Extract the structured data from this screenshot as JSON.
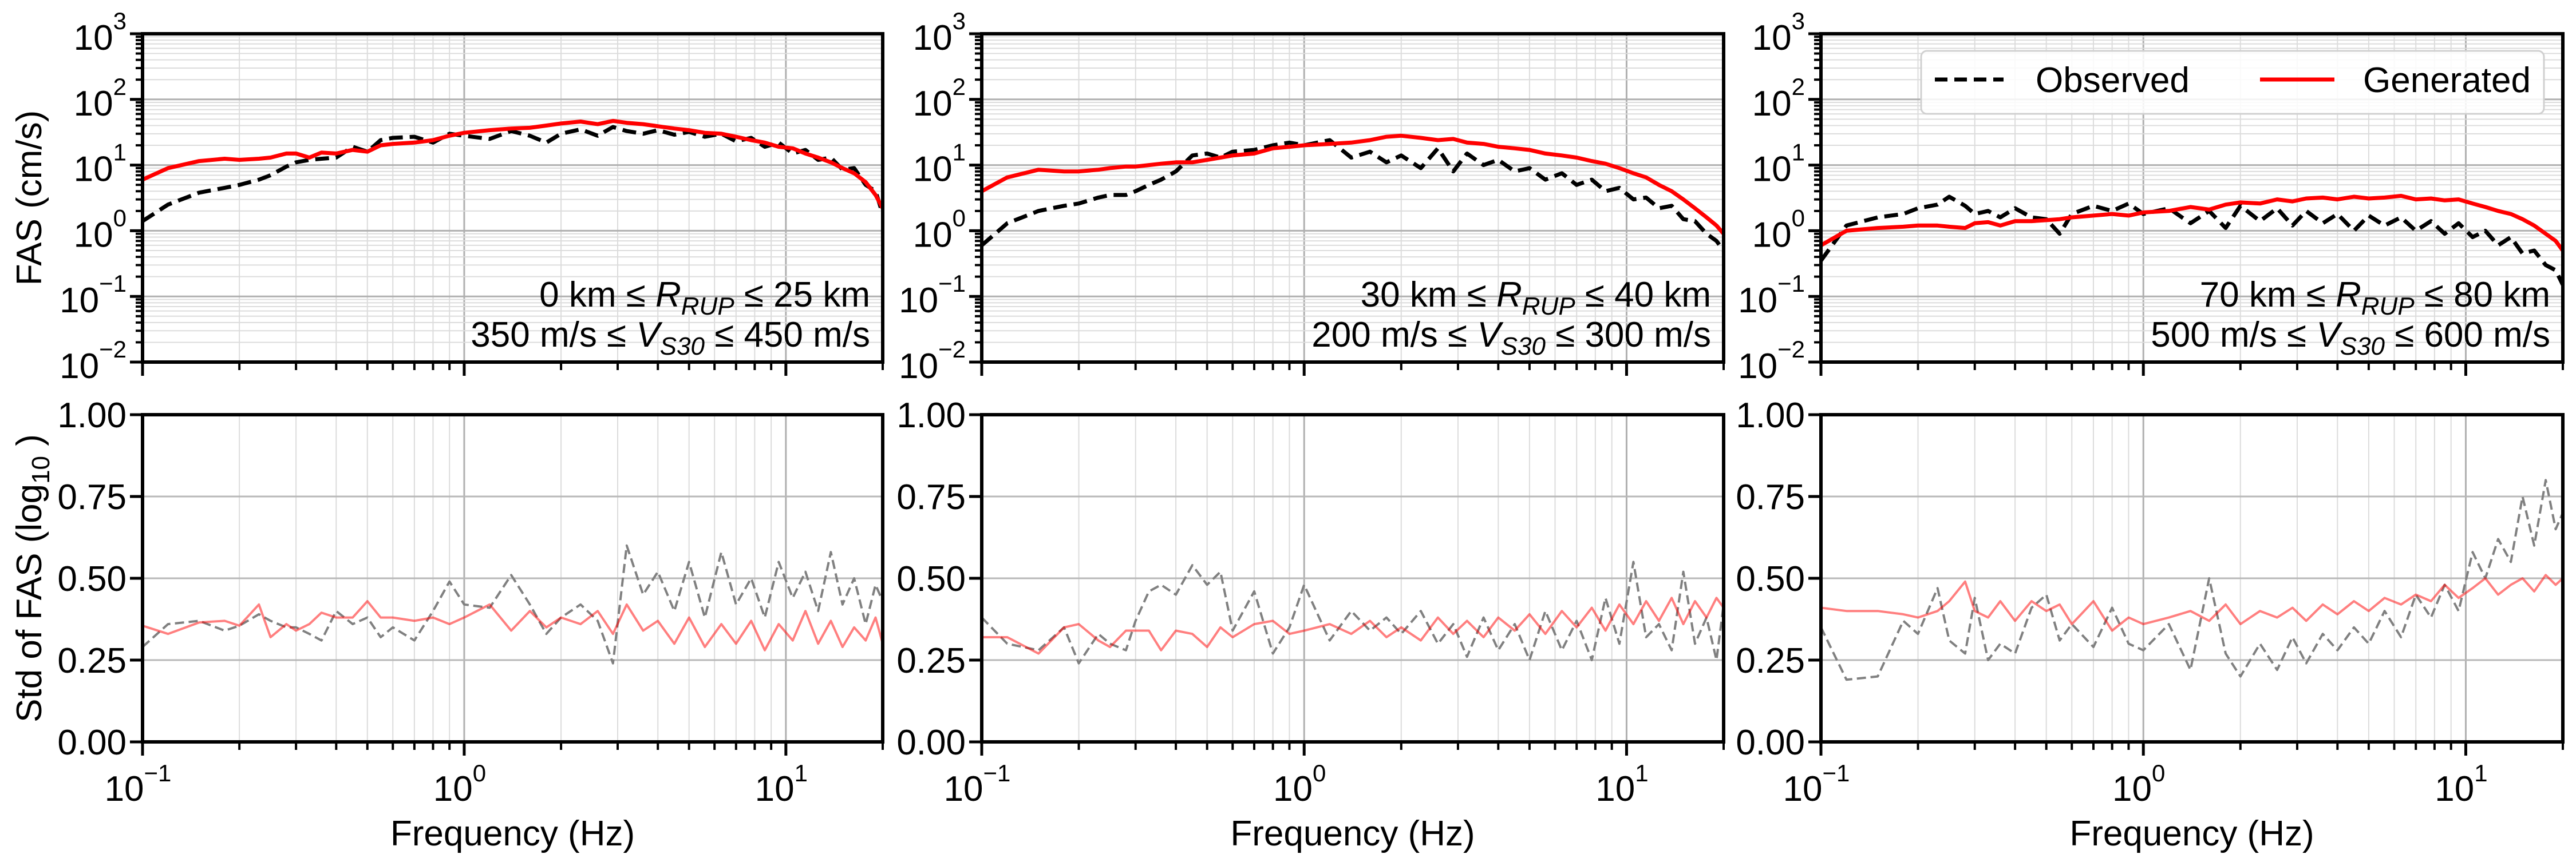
{
  "chart_data": {
    "type": "line",
    "layout": "2 rows x 3 columns",
    "x_scale": "log",
    "xlim": [
      0.1,
      20
    ],
    "xlabel": "Frequency (Hz)",
    "xtick_exponents": [
      -1,
      0,
      1
    ],
    "tick_base": "10",
    "top_row": {
      "ylabel": "FAS (cm/s)",
      "y_scale": "log",
      "ylim": [
        0.01,
        1000
      ],
      "ytick_exponents": [
        -2,
        -1,
        0,
        1,
        2,
        3
      ],
      "grid": "major and minor"
    },
    "bottom_row": {
      "ylabel_main": "Std of FAS (log",
      "ylabel_sub": "10",
      "ylabel_end": " )",
      "y_scale": "linear",
      "ylim": [
        0,
        1
      ],
      "ytick_labels": [
        "0.00",
        "0.25",
        "0.50",
        "0.75",
        "1.00"
      ],
      "ytick_values": [
        0,
        0.25,
        0.5,
        0.75,
        1.0
      ],
      "grid": "major"
    },
    "legend": {
      "placement": "top-right of third top panel",
      "entries": [
        {
          "label": "Observed",
          "color": "#000000",
          "style": "dashed"
        },
        {
          "label": "Generated",
          "color": "#ff0000",
          "style": "solid"
        }
      ]
    },
    "colors": {
      "observed": "#000000",
      "generated": "#ff0000",
      "observed_std": "#808080",
      "generated_std": "#ff0000"
    },
    "frequency": [
      0.1,
      0.12,
      0.15,
      0.18,
      0.2,
      0.23,
      0.25,
      0.28,
      0.3,
      0.33,
      0.36,
      0.4,
      0.45,
      0.5,
      0.55,
      0.6,
      0.7,
      0.8,
      0.9,
      1.0,
      1.2,
      1.4,
      1.6,
      1.8,
      2.0,
      2.3,
      2.6,
      2.9,
      3.2,
      3.6,
      4.0,
      4.5,
      5.0,
      5.6,
      6.3,
      7.0,
      7.8,
      8.6,
      9.5,
      10.5,
      11.5,
      12.6,
      13.8,
      15,
      16.3,
      17.7,
      19,
      20
    ],
    "panels": [
      {
        "annotation": {
          "line1": [
            "0 km ≤ ",
            "R",
            "RUP",
            " ≤ 25 km"
          ],
          "line2": [
            "350 m/s ≤ ",
            "V",
            "S30",
            " ≤ 450 m/s"
          ]
        },
        "fas": [
          {
            "name": "Observed",
            "values": [
              1.4,
              2.5,
              3.8,
              4.5,
              5,
              6,
              7,
              9.5,
              11,
              12,
              12.5,
              13,
              19,
              16,
              24,
              26,
              27,
              22,
              30,
              28,
              25,
              33,
              28,
              22,
              30,
              35,
              28,
              38,
              33,
              30,
              34,
              29,
              32,
              27,
              30,
              23,
              26,
              19,
              22,
              15,
              17,
              12,
              13,
              8.5,
              9,
              5,
              4,
              1.8
            ]
          },
          {
            "name": "Generated",
            "values": [
              6,
              9,
              11.5,
              12.5,
              12,
              12.5,
              13,
              15,
              15,
              13,
              15.5,
              15,
              17,
              16,
              20,
              21,
              22,
              24,
              28,
              31,
              34,
              36,
              37,
              40,
              43,
              46,
              42,
              47,
              44,
              42,
              39,
              36,
              34,
              31,
              30,
              27,
              24,
              22,
              19,
              18,
              15,
              13,
              11,
              9,
              7.5,
              5.5,
              3.5,
              2.2
            ]
          }
        ],
        "std": [
          {
            "name": "Observed",
            "values": [
              0.29,
              0.36,
              0.37,
              0.34,
              0.355,
              0.39,
              0.37,
              0.35,
              0.35,
              0.33,
              0.31,
              0.4,
              0.36,
              0.38,
              0.32,
              0.35,
              0.31,
              0.4,
              0.49,
              0.42,
              0.41,
              0.51,
              0.42,
              0.33,
              0.38,
              0.42,
              0.37,
              0.24,
              0.6,
              0.45,
              0.52,
              0.4,
              0.55,
              0.38,
              0.58,
              0.42,
              0.5,
              0.38,
              0.55,
              0.44,
              0.52,
              0.4,
              0.58,
              0.42,
              0.5,
              0.36,
              0.48,
              0.43
            ]
          },
          {
            "name": "Generated",
            "values": [
              0.355,
              0.33,
              0.365,
              0.37,
              0.355,
              0.42,
              0.32,
              0.36,
              0.34,
              0.36,
              0.395,
              0.38,
              0.38,
              0.43,
              0.38,
              0.38,
              0.37,
              0.38,
              0.36,
              0.38,
              0.42,
              0.34,
              0.4,
              0.35,
              0.38,
              0.36,
              0.4,
              0.33,
              0.42,
              0.34,
              0.37,
              0.3,
              0.38,
              0.29,
              0.36,
              0.3,
              0.37,
              0.28,
              0.36,
              0.31,
              0.4,
              0.3,
              0.37,
              0.29,
              0.35,
              0.31,
              0.38,
              0.3
            ]
          }
        ]
      },
      {
        "annotation": {
          "line1": [
            "30 km ≤ ",
            "R",
            "RUP",
            " ≤ 40 km"
          ],
          "line2": [
            "200 m/s ≤ ",
            "V",
            "S30",
            " ≤ 300 m/s"
          ]
        },
        "fas": [
          {
            "name": "Observed",
            "values": [
              0.6,
              1.3,
              2,
              2.4,
              2.6,
              3.2,
              3.5,
              3.5,
              4,
              5,
              6,
              8,
              14,
              15,
              13,
              16,
              17,
              20,
              22,
              20,
              24,
              13,
              16,
              11,
              14,
              9,
              18,
              8,
              15,
              10,
              12,
              8,
              9,
              6,
              7.5,
              5,
              6,
              4,
              4.5,
              3,
              3.2,
              2.2,
              2.4,
              1.5,
              1.4,
              0.9,
              0.7,
              0.5
            ]
          },
          {
            "name": "Generated",
            "values": [
              4,
              6.5,
              8.5,
              8,
              8,
              8.5,
              9,
              9.5,
              9.5,
              10,
              10.5,
              11,
              11,
              12,
              13,
              14,
              15,
              18,
              19,
              20,
              21,
              22,
              24,
              27,
              28,
              26,
              24,
              25,
              22,
              21,
              19,
              18,
              17,
              15,
              14,
              13,
              11.5,
              10.5,
              9,
              7.5,
              6.5,
              5,
              4,
              3,
              2.2,
              1.6,
              1.2,
              0.9
            ]
          }
        ],
        "std": [
          {
            "name": "Observed",
            "values": [
              0.38,
              0.3,
              0.28,
              0.35,
              0.24,
              0.33,
              0.3,
              0.28,
              0.37,
              0.46,
              0.48,
              0.45,
              0.54,
              0.48,
              0.52,
              0.34,
              0.46,
              0.27,
              0.35,
              0.48,
              0.31,
              0.4,
              0.34,
              0.38,
              0.33,
              0.4,
              0.3,
              0.36,
              0.26,
              0.38,
              0.28,
              0.36,
              0.25,
              0.4,
              0.28,
              0.37,
              0.25,
              0.44,
              0.3,
              0.55,
              0.32,
              0.36,
              0.28,
              0.52,
              0.3,
              0.38,
              0.25,
              0.42
            ]
          },
          {
            "name": "Generated",
            "values": [
              0.32,
              0.32,
              0.27,
              0.35,
              0.36,
              0.31,
              0.29,
              0.34,
              0.34,
              0.34,
              0.28,
              0.34,
              0.33,
              0.29,
              0.35,
              0.32,
              0.36,
              0.37,
              0.33,
              0.34,
              0.36,
              0.33,
              0.37,
              0.32,
              0.35,
              0.31,
              0.38,
              0.33,
              0.37,
              0.32,
              0.38,
              0.34,
              0.39,
              0.33,
              0.4,
              0.35,
              0.41,
              0.34,
              0.42,
              0.36,
              0.43,
              0.37,
              0.44,
              0.36,
              0.43,
              0.38,
              0.44,
              0.41
            ]
          }
        ]
      },
      {
        "annotation": {
          "line1": [
            "70 km ≤ ",
            "R",
            "RUP",
            " ≤ 80 km"
          ],
          "line2": [
            "500 m/s ≤ ",
            "V",
            "S30",
            " ≤ 600 m/s"
          ]
        },
        "fas": [
          {
            "name": "Observed",
            "values": [
              0.35,
              1.2,
              1.6,
              1.8,
              2.2,
              2.5,
              3.3,
              2.4,
              1.8,
              2.0,
              1.6,
              2.2,
              1.6,
              1.5,
              0.9,
              1.8,
              2.4,
              2.0,
              2.6,
              1.8,
              2.2,
              1.3,
              2.0,
              1.1,
              2.4,
              1.4,
              2.2,
              1.2,
              2.0,
              1.3,
              1.8,
              1.0,
              1.7,
              1.2,
              1.6,
              1.0,
              1.4,
              0.9,
              1.3,
              0.8,
              1.0,
              0.6,
              0.8,
              0.45,
              0.5,
              0.3,
              0.25,
              0.15
            ]
          },
          {
            "name": "Generated",
            "values": [
              0.6,
              1.0,
              1.1,
              1.15,
              1.2,
              1.2,
              1.15,
              1.1,
              1.3,
              1.35,
              1.2,
              1.4,
              1.4,
              1.45,
              1.5,
              1.6,
              1.7,
              1.8,
              1.7,
              1.9,
              2.0,
              2.3,
              2.1,
              2.5,
              2.7,
              2.6,
              3.0,
              2.8,
              3.1,
              3.2,
              3.0,
              3.3,
              3.1,
              3.2,
              3.4,
              3.0,
              3.1,
              2.9,
              3.0,
              2.6,
              2.3,
              2.0,
              1.8,
              1.5,
              1.2,
              0.9,
              0.7,
              0.5
            ]
          }
        ],
        "std": [
          {
            "name": "Observed",
            "values": [
              0.35,
              0.19,
              0.2,
              0.37,
              0.33,
              0.47,
              0.31,
              0.27,
              0.44,
              0.25,
              0.3,
              0.27,
              0.41,
              0.45,
              0.31,
              0.36,
              0.29,
              0.41,
              0.3,
              0.28,
              0.36,
              0.22,
              0.5,
              0.27,
              0.2,
              0.3,
              0.22,
              0.32,
              0.24,
              0.33,
              0.28,
              0.35,
              0.3,
              0.4,
              0.32,
              0.45,
              0.38,
              0.48,
              0.4,
              0.58,
              0.5,
              0.62,
              0.55,
              0.75,
              0.6,
              0.8,
              0.65,
              0.7
            ]
          },
          {
            "name": "Generated",
            "values": [
              0.41,
              0.4,
              0.4,
              0.39,
              0.38,
              0.4,
              0.43,
              0.49,
              0.4,
              0.38,
              0.43,
              0.37,
              0.43,
              0.4,
              0.42,
              0.36,
              0.43,
              0.34,
              0.38,
              0.36,
              0.38,
              0.4,
              0.37,
              0.42,
              0.36,
              0.4,
              0.38,
              0.41,
              0.37,
              0.42,
              0.39,
              0.43,
              0.4,
              0.44,
              0.42,
              0.45,
              0.43,
              0.48,
              0.44,
              0.47,
              0.5,
              0.45,
              0.48,
              0.5,
              0.46,
              0.51,
              0.48,
              0.5
            ]
          }
        ]
      }
    ]
  }
}
